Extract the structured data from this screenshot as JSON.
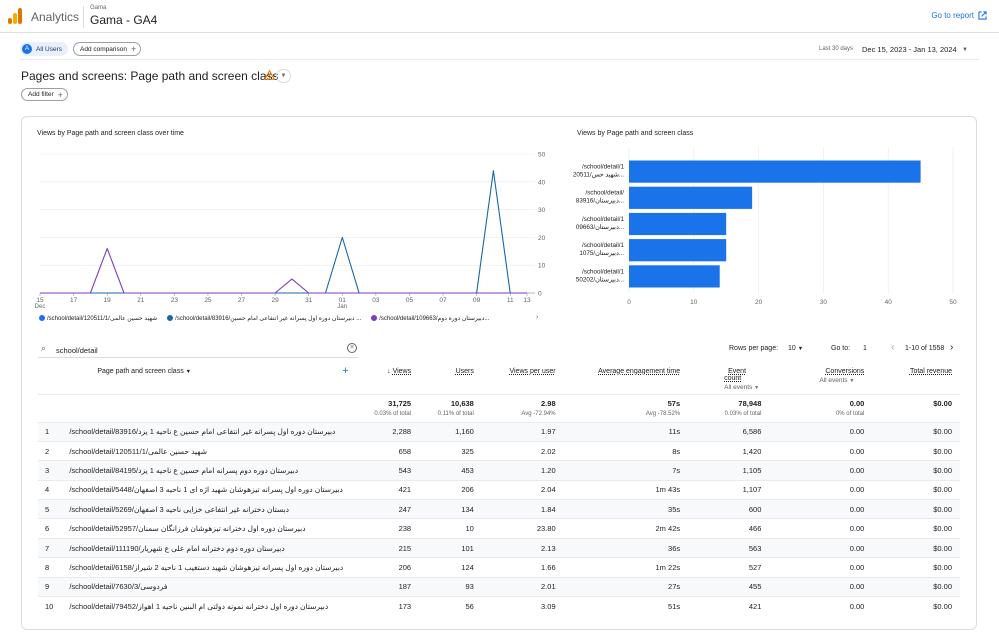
{
  "header": {
    "app_name": "Analytics",
    "account": "Gama",
    "property": "Gama - GA4",
    "go_to_report": "Go to report"
  },
  "subbar": {
    "all_users_initial": "A",
    "all_users": "All Users",
    "add_comparison": "Add comparison",
    "date_label": "Last 30 days",
    "date_range": "Dec 15, 2023 - Jan 13, 2024"
  },
  "page": {
    "title": "Pages and screens: Page path and screen class",
    "add_filter": "Add filter"
  },
  "colors": {
    "blue": "#1a73e8",
    "bar": "#1a73e8",
    "series1": "#1a73e8",
    "series2": "#1967a7",
    "series3": "#7b3fbf"
  },
  "line_chart": {
    "title": "Views by Page path and screen class over time",
    "x_ticks": [
      "15",
      "17",
      "19",
      "21",
      "23",
      "25",
      "27",
      "29",
      "31",
      "01",
      "03",
      "05",
      "07",
      "09",
      "11",
      "13"
    ],
    "x_sub": {
      "15": "Dec",
      "01": "Jan"
    },
    "y_ticks": [
      "50",
      "40",
      "30",
      "20",
      "10",
      "0"
    ],
    "legend": [
      "/school/detail/120511/1/شهید حسین عالمی",
      "/school/detail/83916/دبیرستان دوره اول پسرانه غیر انتفاعی امام حسین ...",
      "/school/detail/109663/دبیرستان دوره دوم..."
    ]
  },
  "chart_data": [
    {
      "type": "line",
      "title": "Views by Page path and screen class over time",
      "x": [
        "Dec 15",
        "Dec 16",
        "Dec 17",
        "Dec 18",
        "Dec 19",
        "Dec 20",
        "Dec 21",
        "Dec 22",
        "Dec 23",
        "Dec 24",
        "Dec 25",
        "Dec 26",
        "Dec 27",
        "Dec 28",
        "Dec 29",
        "Dec 30",
        "Dec 31",
        "Jan 01",
        "Jan 02",
        "Jan 03",
        "Jan 04",
        "Jan 05",
        "Jan 06",
        "Jan 07",
        "Jan 08",
        "Jan 09",
        "Jan 10",
        "Jan 11",
        "Jan 12",
        "Jan 13"
      ],
      "ylim": [
        0,
        50
      ],
      "series": [
        {
          "name": "/school/detail/120511/1/شهید حسین عالمی",
          "color": "#1a73e8",
          "values": [
            0,
            0,
            0,
            0,
            0,
            0,
            0,
            0,
            0,
            0,
            0,
            0,
            0,
            0,
            0,
            0,
            0,
            0,
            0,
            0,
            0,
            0,
            0,
            0,
            0,
            0,
            0,
            0,
            0,
            0
          ]
        },
        {
          "name": "/school/detail/83916",
          "color": "#1967a7",
          "values": [
            0,
            0,
            0,
            0,
            0,
            0,
            0,
            0,
            0,
            0,
            0,
            0,
            0,
            0,
            0,
            0,
            0,
            0,
            20,
            0,
            0,
            0,
            0,
            0,
            0,
            0,
            0,
            44,
            0,
            0
          ]
        },
        {
          "name": "/school/detail/109663",
          "color": "#7b3fbf",
          "values": [
            0,
            0,
            0,
            0,
            16,
            0,
            0,
            0,
            0,
            0,
            0,
            0,
            0,
            0,
            0,
            5,
            0,
            0,
            0,
            0,
            0,
            0,
            0,
            0,
            0,
            0,
            0,
            0,
            0,
            0
          ]
        }
      ]
    },
    {
      "type": "bar",
      "title": "Views by Page path and screen class",
      "categories": [
        "/school/detail/120511/1",
        "/school/detail/83916",
        "/school/detail/109663",
        "/school/detail/11075",
        "/school/detail/150202"
      ],
      "values": [
        45,
        19,
        15,
        15,
        14
      ],
      "xlim": [
        0,
        50
      ],
      "x_ticks": [
        "0",
        "10",
        "20",
        "30",
        "40",
        "50"
      ]
    }
  ],
  "bar_chart": {
    "title": "Views by Page path and screen class",
    "labels": [
      [
        "/school/detail/1",
        "20511/شهید حس..."
      ],
      [
        "/school/detail/",
        "83916/دبیرستان..."
      ],
      [
        "/school/detail/1",
        "09663/دبیرستان..."
      ],
      [
        "/school/detail/1",
        "1075/دبیرستان..."
      ],
      [
        "/school/detail/1",
        "50202/دبیرستان..."
      ]
    ],
    "x_ticks": [
      "0",
      "10",
      "20",
      "30",
      "40",
      "50"
    ]
  },
  "table_toolbar": {
    "search": "school/detail",
    "rows_per_page_label": "Rows per page:",
    "rows_per_page": "10",
    "goto_label": "Go to:",
    "goto_value": "1",
    "range": "1-10 of 1558"
  },
  "table": {
    "columns": [
      "Page path and screen class",
      "Views",
      "Users",
      "Views per user",
      "Average engagement time",
      "Event count",
      "Conversions",
      "Total revenue"
    ],
    "sub": {
      "event_count": "All events",
      "conversions": "All events"
    },
    "totals": {
      "views": "31,725",
      "views_sub": "0.03% of total",
      "users": "10,638",
      "users_sub": "0.11% of total",
      "vpu": "2.98",
      "vpu_sub": "Avg -72.94%",
      "aet": "57s",
      "aet_sub": "Avg -78.52%",
      "events": "78,948",
      "events_sub": "0.03% of total",
      "conv": "0.00",
      "conv_sub": "0% of total",
      "rev": "$0.00"
    },
    "rows": [
      {
        "n": "1",
        "path": "/school/detail/83916/دبیرستان دوره اول پسرانه غیر انتفاعی امام حسین ع ناحیه 1 یزد",
        "views": "2,288",
        "users": "1,160",
        "vpu": "1.97",
        "aet": "11s",
        "events": "6,586",
        "conv": "0.00",
        "rev": "$0.00"
      },
      {
        "n": "2",
        "path": "/school/detail/120511/1/شهید حسین عالمی",
        "views": "658",
        "users": "325",
        "vpu": "2.02",
        "aet": "8s",
        "events": "1,420",
        "conv": "0.00",
        "rev": "$0.00"
      },
      {
        "n": "3",
        "path": "/school/detail/84195/دبیرستان دوره دوم پسرانه امام حسین ع ناحیه 1 یزد",
        "views": "543",
        "users": "453",
        "vpu": "1.20",
        "aet": "7s",
        "events": "1,105",
        "conv": "0.00",
        "rev": "$0.00"
      },
      {
        "n": "4",
        "path": "/school/detail/5448/دبیرستان دوره اول پسرانه تیزهوشان شهید اژه ای 1 ناحیه 3 اصفهان",
        "views": "421",
        "users": "206",
        "vpu": "2.04",
        "aet": "1m 43s",
        "events": "1,107",
        "conv": "0.00",
        "rev": "$0.00"
      },
      {
        "n": "5",
        "path": "/school/detail/5269/دبستان دخترانه غیر انتفاعی خزایی ناحیه 3 اصفهان",
        "views": "247",
        "users": "134",
        "vpu": "1.84",
        "aet": "35s",
        "events": "600",
        "conv": "0.00",
        "rev": "$0.00"
      },
      {
        "n": "6",
        "path": "/school/detail/52957/دبیرستان دوره اول دخترانه تیزهوشان فرزانگان سمنان",
        "views": "238",
        "users": "10",
        "vpu": "23.80",
        "aet": "2m 42s",
        "events": "466",
        "conv": "0.00",
        "rev": "$0.00"
      },
      {
        "n": "7",
        "path": "/school/detail/111190/دبیرستان دوره دوم دخترانه امام علی ع شهریار",
        "views": "215",
        "users": "101",
        "vpu": "2.13",
        "aet": "36s",
        "events": "563",
        "conv": "0.00",
        "rev": "$0.00"
      },
      {
        "n": "8",
        "path": "/school/detail/6158/دبیرستان دوره اول پسرانه تیزهوشان شهید دستغیب 1 ناحیه 2 شیراز",
        "views": "206",
        "users": "124",
        "vpu": "1.66",
        "aet": "1m 22s",
        "events": "527",
        "conv": "0.00",
        "rev": "$0.00"
      },
      {
        "n": "9",
        "path": "/school/detail/7630/3/فردوسی",
        "views": "187",
        "users": "93",
        "vpu": "2.01",
        "aet": "27s",
        "events": "455",
        "conv": "0.00",
        "rev": "$0.00"
      },
      {
        "n": "10",
        "path": "/school/detail/79452/دبیرستان دوره اول دخترانه نمونه دولتی ام البنین ناحیه 1 اهواز",
        "views": "173",
        "users": "56",
        "vpu": "3.09",
        "aet": "51s",
        "events": "421",
        "conv": "0.00",
        "rev": "$0.00"
      }
    ]
  }
}
